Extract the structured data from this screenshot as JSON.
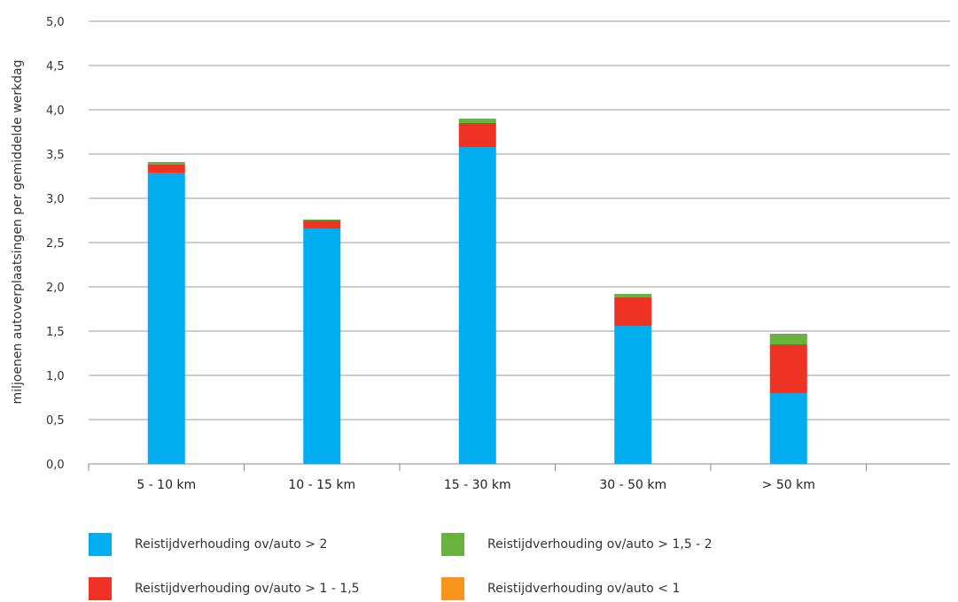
{
  "chart_data": {
    "type": "bar",
    "stacked": true,
    "ylabel": "miljoenen autoverplaatsingen per gemiddelde werkdag",
    "ylim": [
      0,
      5
    ],
    "yticks": [
      "0,0",
      "0,5",
      "1,0",
      "1,5",
      "2,0",
      "2,5",
      "3,0",
      "3,5",
      "4,0",
      "4,5",
      "5,0"
    ],
    "grid": true,
    "legend_position": "bottom",
    "categories": [
      "5 - 10 km",
      "10 - 15 km",
      "15 - 30 km",
      "30 - 50 km",
      "> 50 km"
    ],
    "series": [
      {
        "name": "Reistijdverhouding ov/auto > 2",
        "color": "#00aeef",
        "values": [
          3.29,
          2.66,
          3.58,
          1.56,
          0.8
        ]
      },
      {
        "name": "Reistijdverhouding ov/auto > 1 - 1,5",
        "color": "#ee3224",
        "values": [
          0.09,
          0.09,
          0.27,
          0.32,
          0.55
        ]
      },
      {
        "name": "Reistijdverhouding ov/auto > 1,5 - 2",
        "color": "#6ab23e",
        "values": [
          0.03,
          0.01,
          0.05,
          0.04,
          0.12
        ]
      },
      {
        "name": "Reistijdverhouding ov/auto < 1",
        "color": "#f7941d",
        "values": [
          0,
          0,
          0,
          0,
          0
        ]
      }
    ]
  }
}
